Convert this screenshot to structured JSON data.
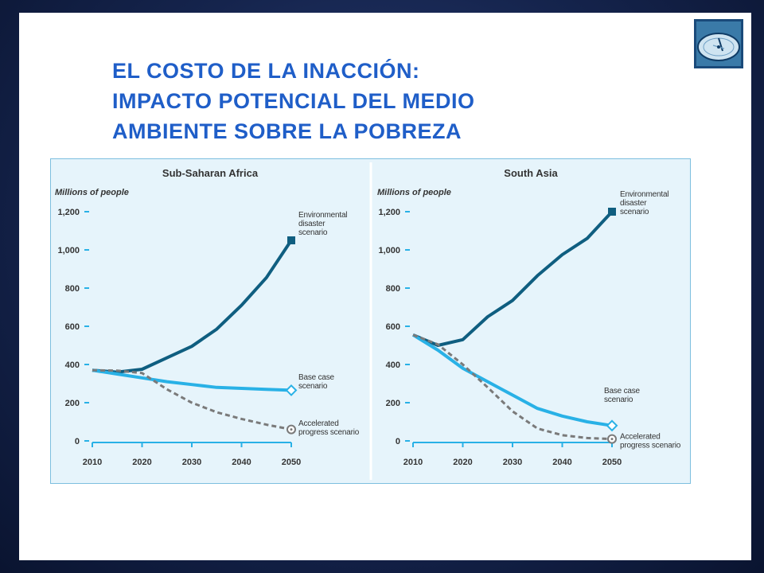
{
  "slide": {
    "title_lines": [
      "EL COSTO DE LA INACCIÓN:",
      "IMPACTO POTENCIAL DEL MEDIO",
      "AMBIENTE SOBRE LA POBREZA"
    ],
    "logo_icon": "compass-logo-icon"
  },
  "colors": {
    "title": "#1f5ec8",
    "environmental": "#0f5e80",
    "base": "#29b1e6",
    "accelerated": "#7a7a7a",
    "panel_bg": "#e6f4fb"
  },
  "chart_data": [
    {
      "type": "line",
      "title": "Sub-Saharan Africa",
      "ylabel": "Millions of people",
      "xlabel": "",
      "x": [
        2010,
        2015,
        2020,
        2025,
        2030,
        2035,
        2040,
        2045,
        2050
      ],
      "ylim": [
        0,
        1200
      ],
      "yticks": [
        0,
        200,
        400,
        600,
        800,
        1000,
        1200
      ],
      "ytick_labels": [
        "0",
        "200",
        "400",
        "600",
        "800",
        "1,000",
        "1,200"
      ],
      "xticks": [
        2010,
        2020,
        2030,
        2040,
        2050
      ],
      "xtick_labels": [
        "2010",
        "2020",
        "2030",
        "2040",
        "2050"
      ],
      "series": [
        {
          "name": "Environmental disaster scenario",
          "label_lines": [
            "Environmental",
            "disaster",
            "scenario"
          ],
          "style": "solid",
          "marker": "square",
          "values": [
            370,
            360,
            375,
            435,
            495,
            585,
            710,
            855,
            1050
          ]
        },
        {
          "name": "Base case scenario",
          "label_lines": [
            "Base case",
            "scenario"
          ],
          "style": "solid",
          "marker": "diamond-open",
          "values": [
            370,
            350,
            330,
            310,
            295,
            280,
            275,
            270,
            265
          ]
        },
        {
          "name": "Accelerated progress scenario",
          "label_lines": [
            "Accelerated",
            "progress scenario"
          ],
          "style": "dashed",
          "marker": "circle-open",
          "values": [
            370,
            368,
            355,
            270,
            200,
            150,
            115,
            85,
            60
          ]
        }
      ]
    },
    {
      "type": "line",
      "title": "South Asia",
      "ylabel": "Millions of people",
      "xlabel": "",
      "x": [
        2010,
        2015,
        2020,
        2025,
        2030,
        2035,
        2040,
        2045,
        2050
      ],
      "ylim": [
        0,
        1200
      ],
      "yticks": [
        0,
        200,
        400,
        600,
        800,
        1000,
        1200
      ],
      "ytick_labels": [
        "0",
        "200",
        "400",
        "600",
        "800",
        "1,000",
        "1,200"
      ],
      "xticks": [
        2010,
        2020,
        2030,
        2040,
        2050
      ],
      "xtick_labels": [
        "2010",
        "2020",
        "2030",
        "2040",
        "2050"
      ],
      "series": [
        {
          "name": "Environmental disaster scenario",
          "label_lines": [
            "Environmental",
            "disaster",
            "scenario"
          ],
          "style": "solid",
          "marker": "square",
          "values": [
            555,
            500,
            530,
            650,
            735,
            865,
            975,
            1060,
            1200
          ]
        },
        {
          "name": "Base case scenario",
          "label_lines": [
            "Base case",
            "scenario"
          ],
          "style": "solid",
          "marker": "diamond-open",
          "values": [
            555,
            475,
            380,
            310,
            240,
            170,
            130,
            100,
            80
          ]
        },
        {
          "name": "Accelerated progress scenario",
          "label_lines": [
            "Accelerated",
            "progress scenario"
          ],
          "style": "dashed",
          "marker": "circle-open",
          "values": [
            555,
            505,
            400,
            280,
            155,
            65,
            30,
            15,
            10
          ]
        }
      ]
    }
  ]
}
